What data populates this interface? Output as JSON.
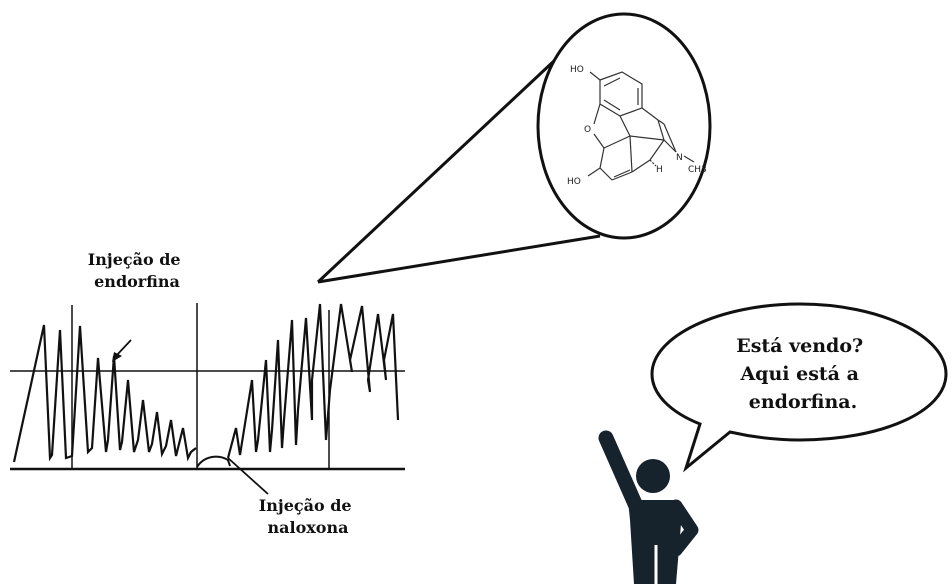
{
  "labels": {
    "endorphin_injection": [
      "Injeção de",
      "endorfina"
    ],
    "naloxone_injection": [
      "Injeção de",
      "naloxona"
    ]
  },
  "speech_bubble": {
    "lines": [
      "Está vendo?",
      "Aqui está a",
      "endorfina."
    ]
  },
  "molecule": {
    "atoms": [
      "HO",
      "O",
      "HO",
      "N",
      "CH3",
      "H"
    ]
  },
  "colors": {
    "ink": "#111111",
    "figure": "#16222c",
    "background": "#ffffff"
  },
  "icons": {
    "person": "pointing-person-icon",
    "molecule": "morphine-structure-icon",
    "bubble": "speech-bubble-icon"
  }
}
